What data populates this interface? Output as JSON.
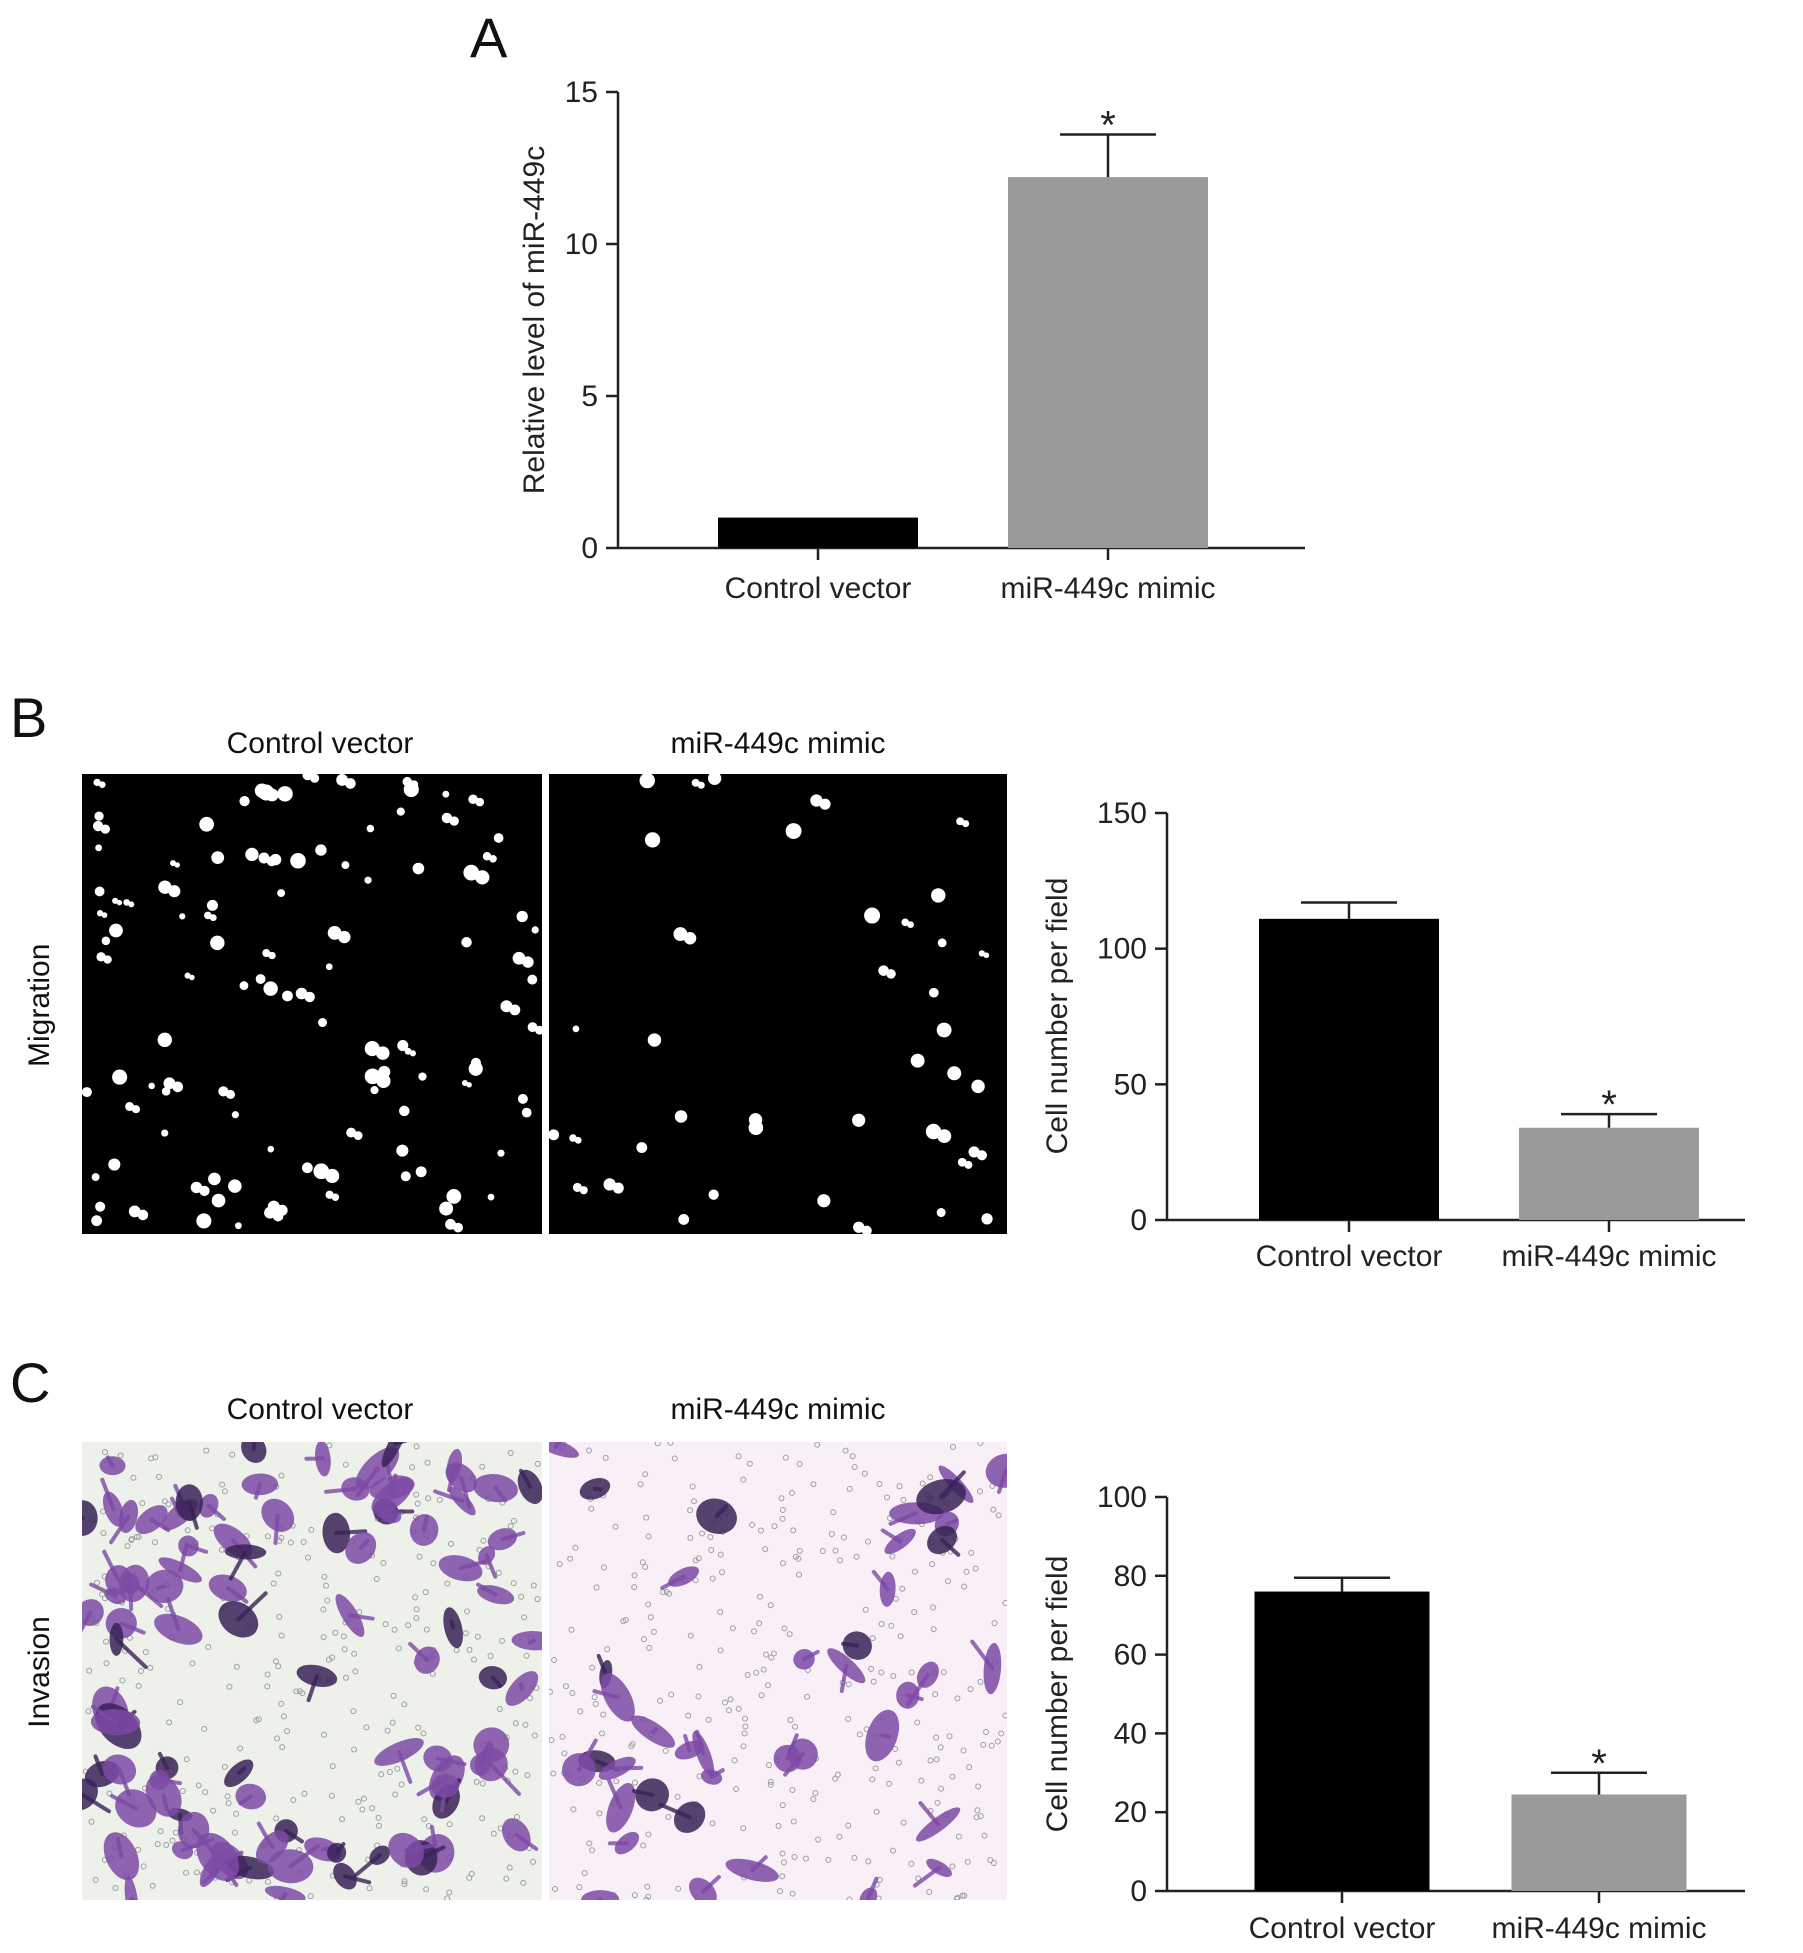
{
  "panels": {
    "a": {
      "letter": "A"
    },
    "b": {
      "letter": "B",
      "row_label": "Migration",
      "micrograph_titles": [
        "Control vector",
        "miR-449c mimic"
      ]
    },
    "c": {
      "letter": "C",
      "row_label": "Invasion",
      "micrograph_titles": [
        "Control vector",
        "miR-449c mimic"
      ]
    }
  },
  "colors": {
    "control_bar": "#000000",
    "mimic_bar": "#9a9a9c",
    "migration_bg": "#000000",
    "migration_cell": "#ffffff",
    "invasion_bg_control": "#eef0ea",
    "invasion_bg_mimic": "#f8eff7",
    "invasion_cell": "#7d4aa6"
  },
  "chart_data": [
    {
      "type": "bar",
      "categories": [
        "Control vector",
        "miR-449c mimic"
      ],
      "values": [
        1.0,
        12.2
      ],
      "errors": [
        0.0,
        1.4
      ],
      "significance": [
        "",
        "*"
      ],
      "ylabel": "Relative level of miR-449c",
      "ylim": [
        0,
        15
      ],
      "yticks": [
        0,
        5,
        10,
        15
      ],
      "grid": false
    },
    {
      "type": "bar",
      "categories": [
        "Control vector",
        "miR-449c mimic"
      ],
      "values": [
        111,
        34
      ],
      "errors": [
        6,
        5
      ],
      "significance": [
        "",
        "*"
      ],
      "ylabel": "Cell number per field",
      "ylim": [
        0,
        150
      ],
      "yticks": [
        0,
        50,
        100,
        150
      ],
      "grid": false
    },
    {
      "type": "bar",
      "categories": [
        "Control vector",
        "miR-449c mimic"
      ],
      "values": [
        76,
        24.5
      ],
      "errors": [
        3.5,
        5.5
      ],
      "significance": [
        "",
        "*"
      ],
      "ylabel": "Cell number per field",
      "ylim": [
        0,
        100
      ],
      "yticks": [
        0,
        20,
        40,
        60,
        80,
        100
      ],
      "grid": false
    }
  ]
}
